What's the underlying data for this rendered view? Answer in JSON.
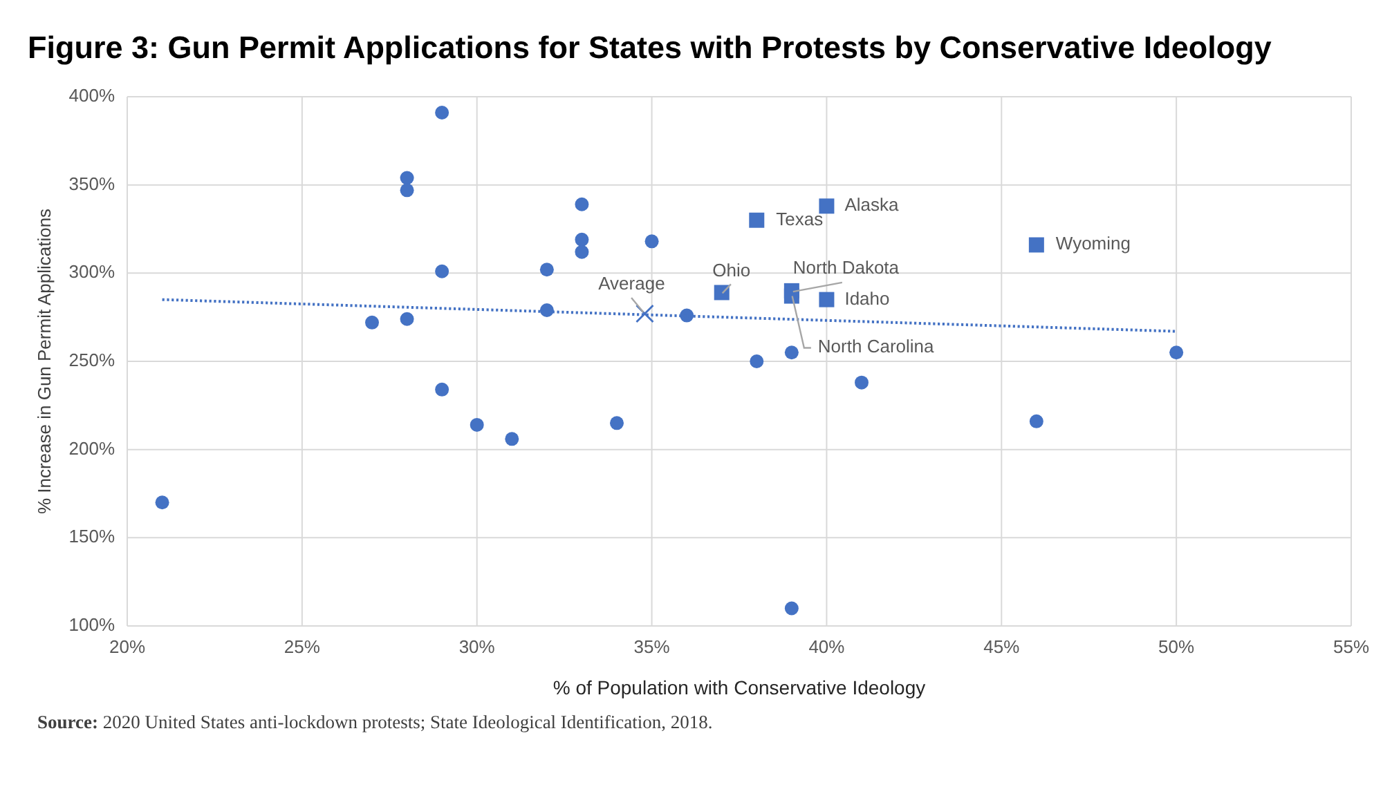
{
  "chart_data": {
    "type": "scatter",
    "title": "Figure 3: Gun Permit Applications for States with Protests by Conservative Ideology",
    "xlabel": "% of Population with Conservative Ideology",
    "ylabel": "% Increase in Gun Permit Applications",
    "xlim": [
      20,
      55
    ],
    "xticks": [
      {
        "value": 20,
        "label": "20%"
      },
      {
        "value": 25,
        "label": "25%"
      },
      {
        "value": 30,
        "label": "30%"
      },
      {
        "value": 35,
        "label": "35%"
      },
      {
        "value": 40,
        "label": "40%"
      },
      {
        "value": 45,
        "label": "45%"
      },
      {
        "value": 50,
        "label": "50%"
      },
      {
        "value": 55,
        "label": "55%"
      }
    ],
    "ylim": [
      100,
      400
    ],
    "yticks": [
      {
        "value": 100,
        "label": "100%"
      },
      {
        "value": 150,
        "label": "150%"
      },
      {
        "value": 200,
        "label": "200%"
      },
      {
        "value": 250,
        "label": "250%"
      },
      {
        "value": 300,
        "label": "300%"
      },
      {
        "value": 350,
        "label": "350%"
      },
      {
        "value": 400,
        "label": "400%"
      }
    ],
    "grid": true,
    "series": [
      {
        "type": "scatter",
        "marker": "circle",
        "color": "#4472c4",
        "x": [
          21,
          27,
          28,
          28,
          28,
          29,
          29,
          29,
          30,
          31,
          32,
          32,
          33,
          33,
          33,
          34,
          35,
          36,
          38,
          39,
          39,
          41,
          46,
          50
        ],
        "values": [
          170,
          272,
          354,
          347,
          274,
          391,
          301,
          234,
          214,
          206,
          302,
          279,
          339,
          319,
          312,
          215,
          318,
          276,
          250,
          255,
          110,
          238,
          216,
          255
        ]
      },
      {
        "type": "scatter",
        "marker": "square",
        "color": "#4472c4",
        "x": [
          38,
          40,
          46,
          37,
          39,
          39,
          40
        ],
        "values": [
          330,
          338,
          316,
          289,
          287,
          290,
          285
        ]
      },
      {
        "type": "scatter",
        "marker": "cross",
        "color": "#4472c4",
        "x": [
          34.8
        ],
        "values": [
          277
        ]
      },
      {
        "type": "line",
        "line_style": "dotted",
        "marker": "none",
        "color": "#4472c4",
        "x": [
          21,
          50
        ],
        "values": [
          285,
          267
        ]
      }
    ],
    "annotations": [
      {
        "text": "Texas",
        "x": 38,
        "y": 330
      },
      {
        "text": "Alaska",
        "x": 40,
        "y": 338
      },
      {
        "text": "Wyoming",
        "x": 46,
        "y": 316
      },
      {
        "text": "Ohio",
        "x": 37,
        "y": 289
      },
      {
        "text": "North Dakota",
        "x": 39,
        "y": 290
      },
      {
        "text": "Idaho",
        "x": 40,
        "y": 285
      },
      {
        "text": "North Carolina",
        "x": 39,
        "y": 287
      },
      {
        "text": "Average",
        "x": 34.8,
        "y": 277
      },
      "Source: 2020 United States anti-lockdown protests; State Ideological Identification, 2018."
    ]
  }
}
